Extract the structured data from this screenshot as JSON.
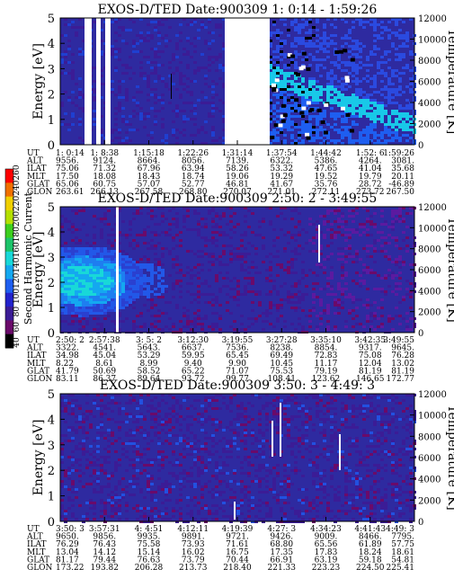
{
  "chart_data": [
    {
      "type": "heatmap",
      "title": "EXOS-D/TED   Date:900309   1: 0:14 - 1:59:26",
      "ylabel": "Energy [eV]",
      "ylabel_right": "Temperature [K]",
      "yticks": [
        "0",
        "1",
        "2",
        "3",
        "4",
        "5"
      ],
      "ylim": [
        0,
        5
      ],
      "rticks": [
        "0",
        "2000",
        "4000",
        "6000",
        "8000",
        "10000",
        "12000"
      ],
      "rlim": [
        0,
        12000
      ],
      "row_labels": [
        "UT",
        "ALT",
        "ILAT",
        "MLT",
        "GLAT",
        "GLON"
      ],
      "columns": [
        [
          "1: 0:14",
          "9556.",
          "75.06",
          "17.50",
          "65.06",
          "263.61"
        ],
        [
          "1: 8:38",
          "9124.",
          "71.32",
          "18.08",
          "60.75",
          "266.13"
        ],
        [
          "1:15:18",
          "8664.",
          "67.96",
          "18.43",
          "57.07",
          "267.58"
        ],
        [
          "1:22:26",
          "8056.",
          "63.94",
          "18.74",
          "52.77",
          "268.80"
        ],
        [
          "1:31:14",
          "7139.",
          "58.26",
          "19.06",
          "46.81",
          "270.07"
        ],
        [
          "1:37:54",
          "6322.",
          "53.32",
          "19.29",
          "41.67",
          "271.01"
        ],
        [
          "1:44:42",
          "5386.",
          "47.65",
          "19.52",
          "35.76",
          "272.11"
        ],
        [
          "1:52: 6",
          "4264.",
          "41.04",
          "19.79",
          "28.72",
          "273.72"
        ],
        [
          "1:59:26",
          "3081.",
          "35.68",
          "20.11",
          "-46.89",
          "267.50"
        ]
      ]
    },
    {
      "type": "heatmap",
      "title": "EXOS-D/TED   Date:900309   2:50: 2 - 3:49:55",
      "ylabel": "Energy [eV]",
      "ylabel_right": "Temperature [K]",
      "yticks": [
        "0",
        "1",
        "2",
        "3",
        "4",
        "5"
      ],
      "ylim": [
        0,
        5
      ],
      "rticks": [
        "0",
        "2000",
        "4000",
        "6000",
        "8000",
        "10000",
        "12000"
      ],
      "rlim": [
        0,
        12000
      ],
      "row_labels": [
        "UT",
        "ALT",
        "ILAT",
        "MLT",
        "GLAT",
        "GLON"
      ],
      "columns": [
        [
          "2:50: 2",
          "3322.",
          "34.98",
          "8.22",
          "41.79",
          "83.11"
        ],
        [
          "2:57:38",
          "4541.",
          "45.04",
          "8.61",
          "50.69",
          "86.37"
        ],
        [
          "3: 5: 2",
          "5643.",
          "53.29",
          "8.99",
          "58.52",
          "89.64"
        ],
        [
          "3:12:30",
          "6637.",
          "59.95",
          "9.40",
          "65.22",
          "93.72"
        ],
        [
          "3:19:55",
          "7536.",
          "65.45",
          "9.90",
          "71.07",
          "99.77"
        ],
        [
          "3:27:28",
          "8238.",
          "69.49",
          "10.45",
          "75.53",
          "108.41"
        ],
        [
          "3:35:10",
          "8854.",
          "72.83",
          "11.17",
          "79.19",
          "123.62"
        ],
        [
          "3:42:35",
          "9317.",
          "75.08",
          "12.04",
          "81.19",
          "146.65"
        ],
        [
          "3:49:55",
          "9645.",
          "76.28",
          "13.02",
          "81.19",
          "172.77"
        ]
      ]
    },
    {
      "type": "heatmap",
      "title": "EXOS-D/TED   Date:900309   3:50: 3 - 4:49: 3",
      "ylabel": "Energy [eV]",
      "ylabel_right": "Temperature [K]",
      "yticks": [
        "0",
        "1",
        "2",
        "3",
        "4",
        "5"
      ],
      "ylim": [
        0,
        5
      ],
      "rticks": [
        "0",
        "2000",
        "4000",
        "6000",
        "8000",
        "10000",
        "12000"
      ],
      "rlim": [
        0,
        12000
      ],
      "row_labels": [
        "UT",
        "ALT",
        "ILAT",
        "MLT",
        "GLAT",
        "GLON"
      ],
      "columns": [
        [
          "3:50: 3",
          "9650.",
          "76.29",
          "13.04",
          "81.17",
          "173.22"
        ],
        [
          "3:57:31",
          "9856.",
          "76.43",
          "14.12",
          "79.44",
          "193.82"
        ],
        [
          "4: 4:51",
          "9935.",
          "75.58",
          "15.14",
          "76.63",
          "206.28"
        ],
        [
          "4:12:11",
          "9891.",
          "73.93",
          "16.02",
          "73.79",
          "213.73"
        ],
        [
          "4:19:39",
          "9721.",
          "71.61",
          "16.75",
          "70.44",
          "218.40"
        ],
        [
          "4:27: 3",
          "9426.",
          "68.80",
          "17.35",
          "66.91",
          "221.33"
        ],
        [
          "4:34:23",
          "9009.",
          "65.56",
          "17.83",
          "63.19",
          "223.23"
        ],
        [
          "4:41:43",
          "8466.",
          "61.89",
          "18.24",
          "59.18",
          "224.50"
        ],
        [
          "4:49: 3",
          "7795.",
          "57.75",
          "18.61",
          "54.81",
          "225.41"
        ]
      ]
    }
  ],
  "colorbar": {
    "label": "Second Harmonic Current",
    "ticks": [
      "40",
      "60",
      "80",
      "100",
      "120",
      "140",
      "160",
      "180",
      "200",
      "220",
      "240",
      "260"
    ],
    "colors": [
      "#000000",
      "#6a0a6a",
      "#3b1c96",
      "#2222cc",
      "#1e5ef0",
      "#14a8f0",
      "#18d8d8",
      "#1cc46a",
      "#3ccf1e",
      "#b4e000",
      "#f0d000",
      "#f07000",
      "#ff0000"
    ]
  }
}
